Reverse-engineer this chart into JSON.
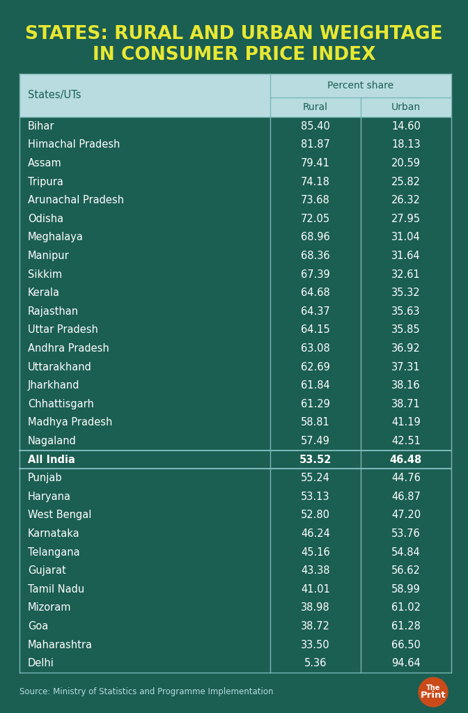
{
  "title_line1": "STATES: RURAL AND URBAN WEIGHTAGE",
  "title_line2": "IN CONSUMER PRICE INDEX",
  "title_color": "#e8e832",
  "bg_color": "#1b5e52",
  "table_header_bg": "#b8dce0",
  "table_data_bg": "#1b5e52",
  "header_text_color": "#1b5e52",
  "data_text_color": "#ffffff",
  "all_india_text_color": "#ffffff",
  "divider_color": "#7ab8b8",
  "all_india_line_color": "#7ab8b8",
  "header1": "States/UTs",
  "header2": "Percent share",
  "subheader_rural": "Rural",
  "subheader_urban": "Urban",
  "source": "Source: Ministry of Statistics and Programme Implementation",
  "source_color": "#b8dce0",
  "states": [
    "Bihar",
    "Himachal Pradesh",
    "Assam",
    "Tripura",
    "Arunachal Pradesh",
    "Odisha",
    "Meghalaya",
    "Manipur",
    "Sikkim",
    "Kerala",
    "Rajasthan",
    "Uttar Pradesh",
    "Andhra Pradesh",
    "Uttarakhand",
    "Jharkhand",
    "Chhattisgarh",
    "Madhya Pradesh",
    "Nagaland",
    "All India",
    "Punjab",
    "Haryana",
    "West Bengal",
    "Karnataka",
    "Telangana",
    "Gujarat",
    "Tamil Nadu",
    "Mizoram",
    "Goa",
    "Maharashtra",
    "Delhi"
  ],
  "rural": [
    85.4,
    81.87,
    79.41,
    74.18,
    73.68,
    72.05,
    68.96,
    68.36,
    67.39,
    64.68,
    64.37,
    64.15,
    63.08,
    62.69,
    61.84,
    61.29,
    58.81,
    57.49,
    53.52,
    55.24,
    53.13,
    52.8,
    46.24,
    45.16,
    43.38,
    41.01,
    38.98,
    38.72,
    33.5,
    5.36
  ],
  "urban": [
    14.6,
    18.13,
    20.59,
    25.82,
    26.32,
    27.95,
    31.04,
    31.64,
    32.61,
    35.32,
    35.63,
    35.85,
    36.92,
    37.31,
    38.16,
    38.71,
    41.19,
    42.51,
    46.48,
    44.76,
    46.87,
    47.2,
    53.76,
    54.84,
    56.62,
    58.99,
    61.02,
    61.28,
    66.5,
    94.64
  ],
  "all_india_index": 18,
  "logo_color": "#c94b1a",
  "logo_text1": "The",
  "logo_text2": "Print"
}
